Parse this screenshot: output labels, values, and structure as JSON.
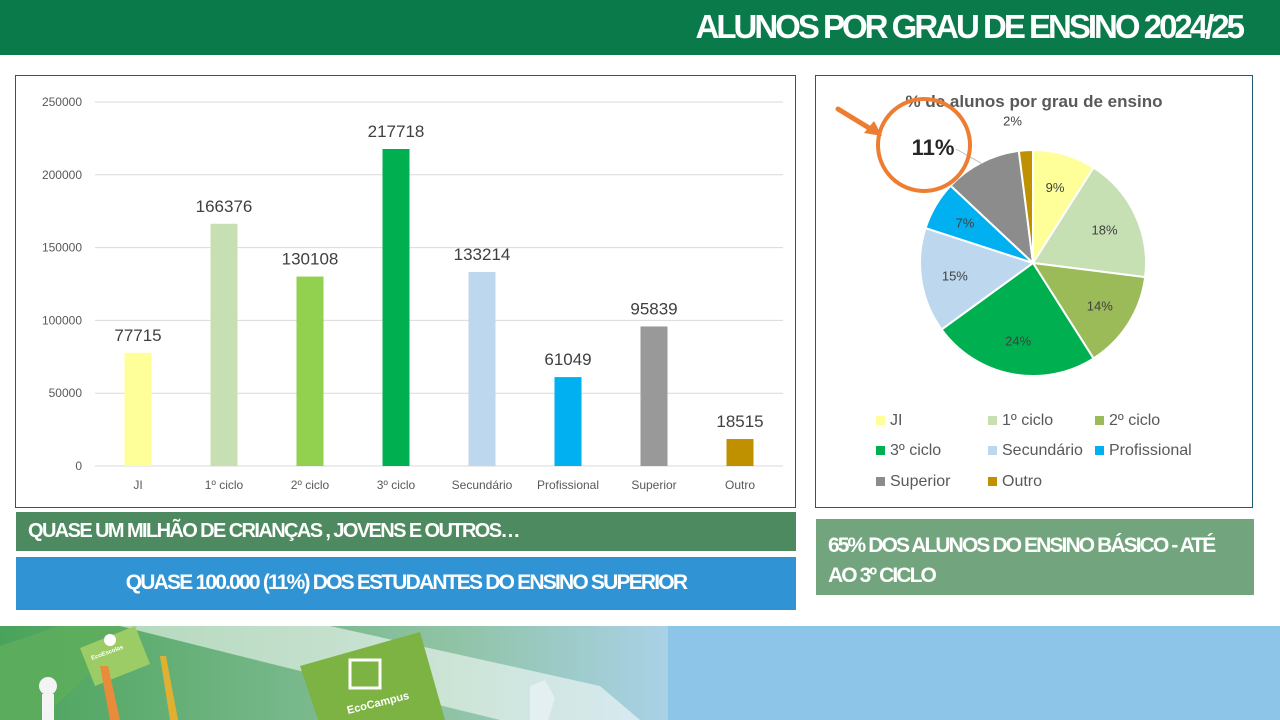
{
  "header": {
    "title": "ALUNOS POR GRAU DE ENSINO 2024/25"
  },
  "chart_data": [
    {
      "type": "bar",
      "categories": [
        "JI",
        "1º ciclo",
        "2º ciclo",
        "3º ciclo",
        "Secundário",
        "Profissional",
        "Superior",
        "Outro"
      ],
      "values": [
        77715,
        166376,
        130108,
        217718,
        133214,
        61049,
        95839,
        18515
      ],
      "colors": [
        "#ffff99",
        "#c6e0b4",
        "#92d050",
        "#00b050",
        "#bdd7ee",
        "#00b0f0",
        "#999999",
        "#bf9000"
      ],
      "yticks": [
        0,
        50000,
        100000,
        150000,
        200000,
        250000
      ],
      "ylim": [
        0,
        250000
      ],
      "grid": true,
      "title": "",
      "xlabel": "",
      "ylabel": ""
    },
    {
      "type": "pie",
      "title": "% de alunos por grau de ensino",
      "categories": [
        "JI",
        "1º ciclo",
        "2º ciclo",
        "3º ciclo",
        "Secundário",
        "Profissional",
        "Superior",
        "Outro"
      ],
      "values": [
        9,
        18,
        14,
        24,
        15,
        7,
        11,
        2
      ],
      "labels": [
        "9%",
        "18%",
        "14%",
        "24%",
        "15%",
        "7%",
        "11%",
        "2%"
      ],
      "colors": [
        "#ffff99",
        "#c6e0b4",
        "#9bbb59",
        "#00b050",
        "#bdd7ee",
        "#00b0f0",
        "#8c8c8c",
        "#bf9000"
      ],
      "legend_position": "bottom",
      "highlight": {
        "label": "11%",
        "color": "#ed7d31"
      }
    }
  ],
  "banners": {
    "quase_milhao": "QUASE UM MILHÃO DE CRIANÇAS , JOVENS E OUTROS…",
    "superior": "QUASE 100.000 (11%) DOS ESTUDANTES DO ENSINO SUPERIOR",
    "basico": "65% DOS ALUNOS DO ENSINO BÁSICO - ATÉ AO 3º CICLO"
  },
  "photo": {
    "flag_text": "EcoCampus",
    "flag_text_small": "EcoEscolas"
  }
}
